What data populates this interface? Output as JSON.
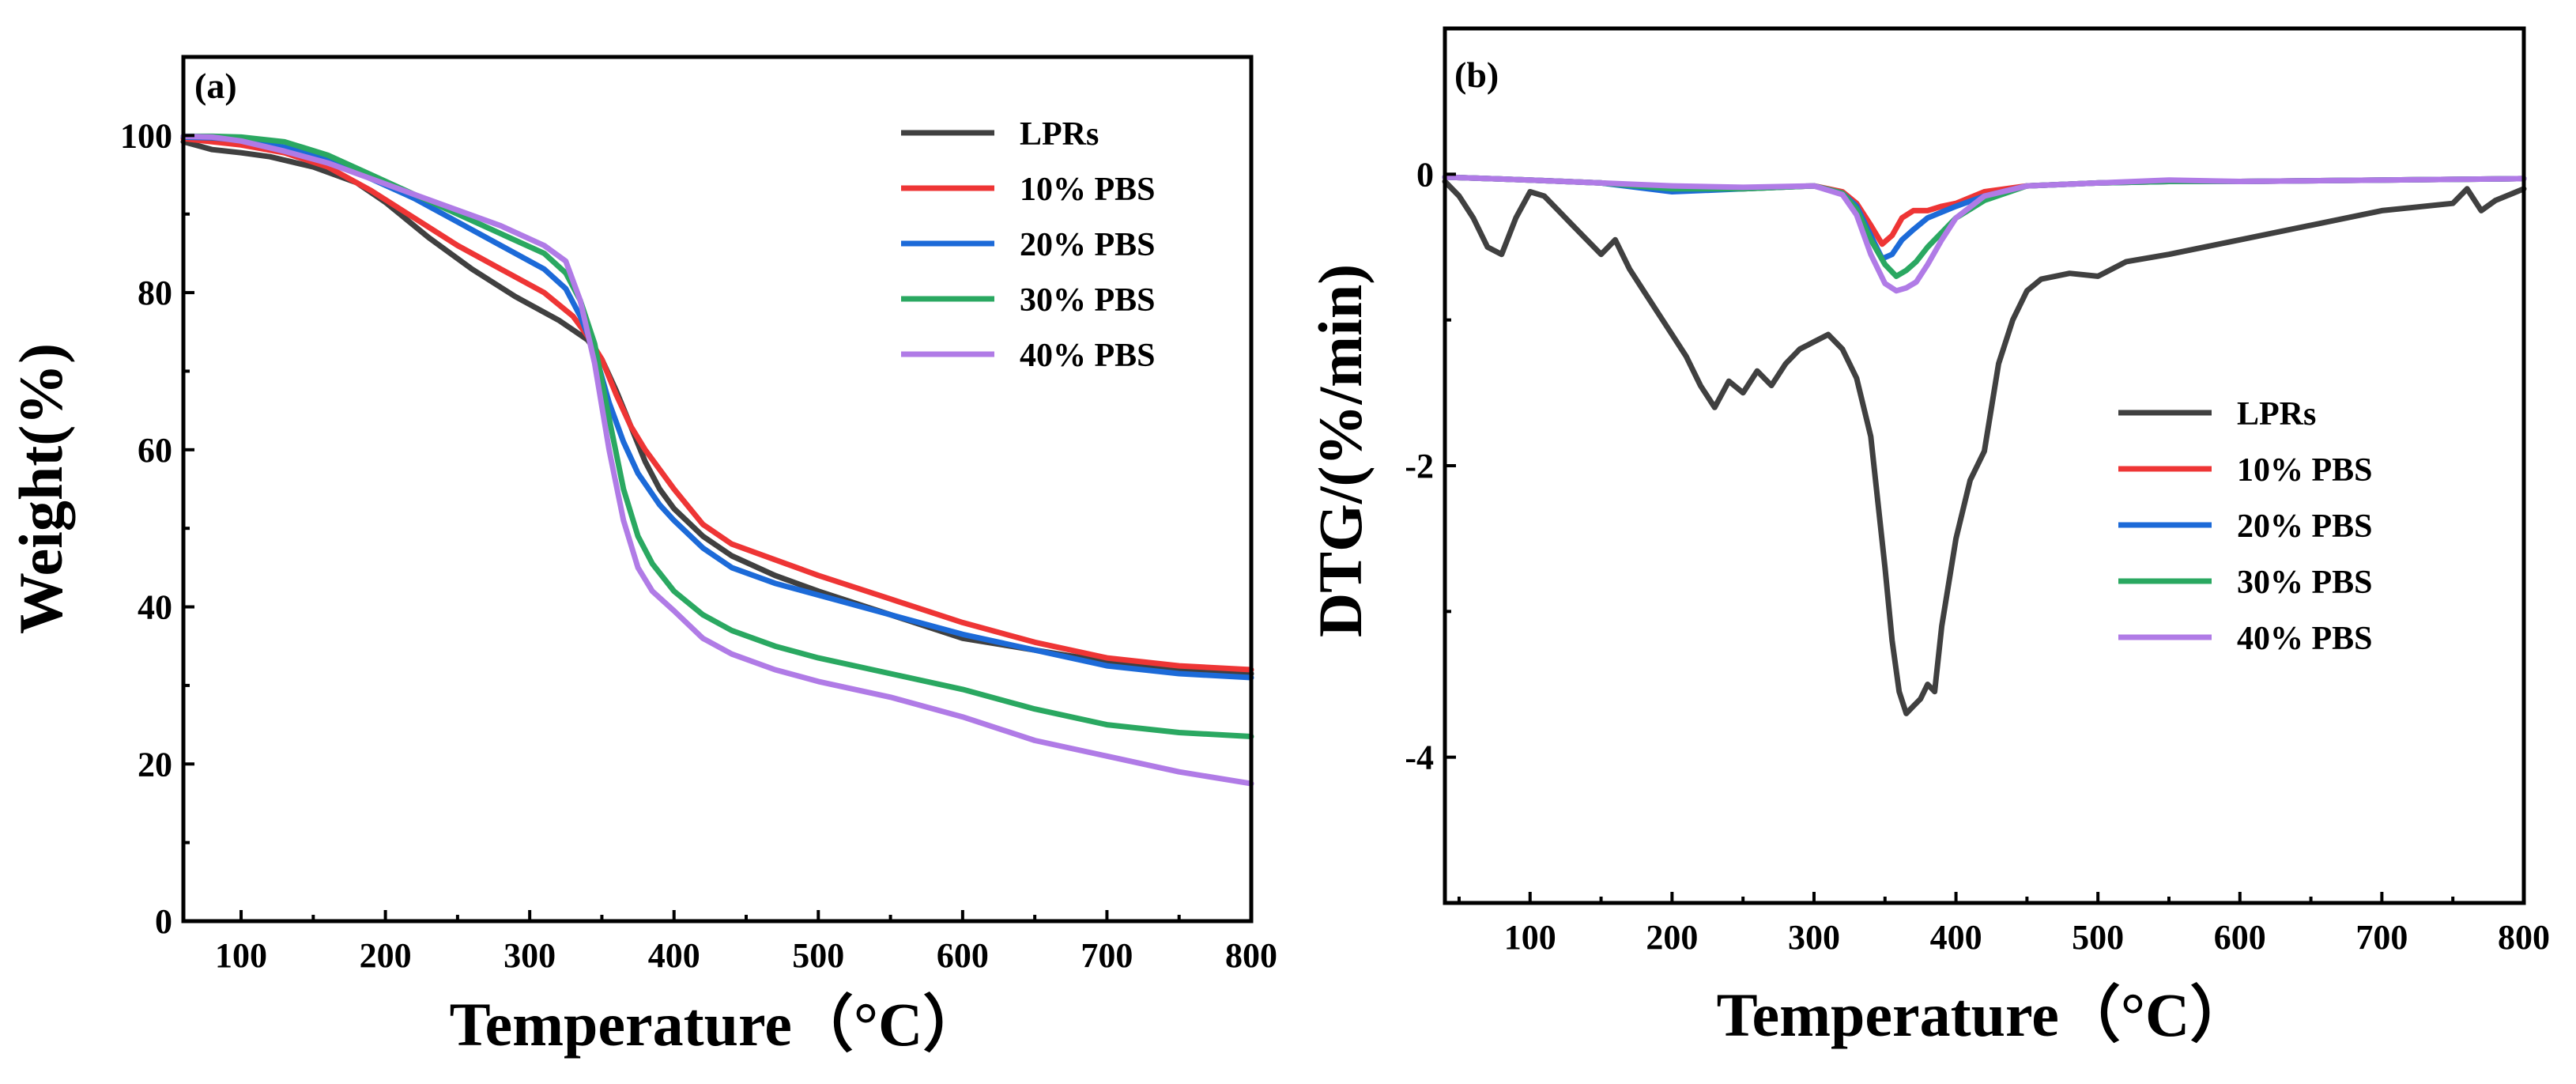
{
  "colors": {
    "LPRs": "#404040",
    "10% PBS": "#ee3535",
    "20% PBS": "#1c6ad8",
    "30% PBS": "#2aa861",
    "40% PBS": "#b07be6"
  },
  "chart_data": [
    {
      "type": "line",
      "panel_label": "(a)",
      "title": "",
      "xlabel": "Temperature（°C）",
      "ylabel": "Weight(%)",
      "xlim": [
        60,
        800
      ],
      "ylim": [
        0,
        110
      ],
      "xticks": [
        100,
        200,
        300,
        400,
        500,
        600,
        700,
        800
      ],
      "yticks": [
        0,
        20,
        40,
        60,
        80,
        100
      ],
      "xtick_labels": [
        "100",
        "200",
        "300",
        "400",
        "500",
        "600",
        "700",
        "800"
      ],
      "ytick_labels": [
        "0",
        "20",
        "40",
        "60",
        "80",
        "100"
      ],
      "grid": false,
      "legend_position": "top-right",
      "series": [
        {
          "name": "LPRs",
          "x": [
            60,
            80,
            100,
            120,
            150,
            180,
            200,
            230,
            260,
            290,
            320,
            340,
            350,
            360,
            370,
            380,
            390,
            400,
            420,
            440,
            470,
            500,
            550,
            600,
            650,
            700,
            750,
            800
          ],
          "y": [
            99.2,
            98.2,
            97.8,
            97.3,
            96.0,
            94.0,
            91.5,
            87.0,
            83.0,
            79.5,
            76.5,
            74.0,
            71.5,
            67.5,
            63.0,
            58.5,
            55.0,
            52.5,
            49.0,
            46.5,
            44.0,
            42.0,
            39.0,
            36.0,
            34.5,
            33.0,
            32.0,
            31.5
          ]
        },
        {
          "name": "10% PBS",
          "x": [
            60,
            80,
            100,
            130,
            160,
            190,
            220,
            250,
            280,
            310,
            330,
            340,
            350,
            360,
            370,
            380,
            400,
            420,
            440,
            470,
            500,
            550,
            600,
            650,
            700,
            750,
            800
          ],
          "y": [
            99.6,
            99.2,
            98.8,
            97.8,
            96.0,
            93.0,
            89.5,
            86.0,
            83.0,
            80.0,
            77.0,
            74.5,
            71.5,
            67.0,
            63.0,
            60.0,
            55.0,
            50.5,
            48.0,
            46.0,
            44.0,
            41.0,
            38.0,
            35.5,
            33.5,
            32.5,
            32.0
          ]
        },
        {
          "name": "20% PBS",
          "x": [
            60,
            80,
            100,
            130,
            160,
            190,
            220,
            250,
            280,
            310,
            325,
            335,
            345,
            355,
            365,
            375,
            390,
            400,
            420,
            440,
            470,
            500,
            550,
            600,
            650,
            700,
            750,
            800
          ],
          "y": [
            99.8,
            99.7,
            99.4,
            98.5,
            97.0,
            94.5,
            92.0,
            89.0,
            86.0,
            83.0,
            80.5,
            77.0,
            72.5,
            66.0,
            61.0,
            57.0,
            53.0,
            51.0,
            47.5,
            45.0,
            43.0,
            41.5,
            39.0,
            36.5,
            34.5,
            32.5,
            31.5,
            31.0
          ]
        },
        {
          "name": "30% PBS",
          "x": [
            60,
            80,
            100,
            130,
            160,
            190,
            220,
            250,
            280,
            310,
            325,
            335,
            345,
            355,
            365,
            375,
            385,
            400,
            420,
            440,
            470,
            500,
            550,
            600,
            650,
            700,
            750,
            800
          ],
          "y": [
            99.9,
            99.9,
            99.8,
            99.2,
            97.5,
            95.0,
            92.5,
            90.0,
            87.5,
            85.0,
            82.5,
            79.0,
            73.5,
            64.0,
            55.0,
            49.0,
            45.5,
            42.0,
            39.0,
            37.0,
            35.0,
            33.5,
            31.5,
            29.5,
            27.0,
            25.0,
            24.0,
            23.5
          ]
        },
        {
          "name": "40% PBS",
          "x": [
            60,
            80,
            100,
            130,
            160,
            190,
            220,
            250,
            280,
            310,
            325,
            335,
            345,
            355,
            365,
            375,
            385,
            400,
            420,
            440,
            470,
            500,
            550,
            600,
            650,
            700,
            750,
            800
          ],
          "y": [
            99.9,
            99.8,
            99.3,
            98.0,
            96.5,
            94.5,
            92.5,
            90.5,
            88.5,
            86.0,
            84.0,
            79.0,
            71.0,
            60.0,
            51.0,
            45.0,
            42.0,
            39.5,
            36.0,
            34.0,
            32.0,
            30.5,
            28.5,
            26.0,
            23.0,
            21.0,
            19.0,
            17.5
          ]
        }
      ]
    },
    {
      "type": "line",
      "panel_label": "(b)",
      "title": "",
      "xlabel": "Temperature（°C）",
      "ylabel": "DTG/(%/min)",
      "xlim": [
        40,
        800
      ],
      "ylim": [
        -5,
        1
      ],
      "xticks": [
        100,
        200,
        300,
        400,
        500,
        600,
        700,
        800
      ],
      "yticks": [
        0,
        -2,
        -4
      ],
      "xtick_labels": [
        "100",
        "200",
        "300",
        "400",
        "500",
        "600",
        "700",
        "800"
      ],
      "ytick_labels": [
        "0",
        "-2",
        "-4"
      ],
      "grid": false,
      "legend_position": "center-right",
      "series": [
        {
          "name": "LPRs",
          "x": [
            40,
            50,
            60,
            70,
            80,
            90,
            100,
            110,
            120,
            130,
            140,
            150,
            160,
            170,
            180,
            190,
            200,
            210,
            220,
            230,
            240,
            250,
            260,
            270,
            280,
            290,
            300,
            310,
            320,
            330,
            340,
            350,
            355,
            360,
            365,
            370,
            375,
            380,
            385,
            390,
            400,
            410,
            420,
            430,
            440,
            450,
            460,
            480,
            500,
            520,
            550,
            600,
            650,
            700,
            750,
            760,
            770,
            780,
            800
          ],
          "y": [
            -0.05,
            -0.15,
            -0.3,
            -0.5,
            -0.55,
            -0.3,
            -0.12,
            -0.15,
            -0.25,
            -0.35,
            -0.45,
            -0.55,
            -0.45,
            -0.65,
            -0.8,
            -0.95,
            -1.1,
            -1.25,
            -1.45,
            -1.6,
            -1.42,
            -1.5,
            -1.35,
            -1.45,
            -1.3,
            -1.2,
            -1.15,
            -1.1,
            -1.2,
            -1.4,
            -1.8,
            -2.7,
            -3.2,
            -3.55,
            -3.7,
            -3.65,
            -3.6,
            -3.5,
            -3.55,
            -3.1,
            -2.5,
            -2.1,
            -1.9,
            -1.3,
            -1.0,
            -0.8,
            -0.72,
            -0.68,
            -0.7,
            -0.6,
            -0.55,
            -0.45,
            -0.35,
            -0.25,
            -0.2,
            -0.1,
            -0.25,
            -0.18,
            -0.1
          ]
        },
        {
          "name": "10% PBS",
          "x": [
            40,
            100,
            150,
            200,
            250,
            300,
            320,
            330,
            340,
            348,
            355,
            362,
            370,
            380,
            390,
            400,
            420,
            450,
            500,
            550,
            600,
            700,
            800
          ],
          "y": [
            -0.02,
            -0.04,
            -0.06,
            -0.1,
            -0.1,
            -0.08,
            -0.12,
            -0.2,
            -0.35,
            -0.48,
            -0.42,
            -0.3,
            -0.25,
            -0.25,
            -0.22,
            -0.2,
            -0.12,
            -0.08,
            -0.06,
            -0.05,
            -0.05,
            -0.04,
            -0.03
          ]
        },
        {
          "name": "20% PBS",
          "x": [
            40,
            100,
            150,
            200,
            250,
            300,
            320,
            330,
            340,
            348,
            355,
            362,
            370,
            380,
            390,
            400,
            420,
            450,
            500,
            550,
            600,
            700,
            800
          ],
          "y": [
            -0.02,
            -0.04,
            -0.06,
            -0.12,
            -0.1,
            -0.08,
            -0.13,
            -0.22,
            -0.42,
            -0.58,
            -0.55,
            -0.45,
            -0.38,
            -0.3,
            -0.26,
            -0.22,
            -0.15,
            -0.08,
            -0.06,
            -0.05,
            -0.05,
            -0.04,
            -0.03
          ]
        },
        {
          "name": "30% PBS",
          "x": [
            40,
            100,
            150,
            200,
            250,
            300,
            320,
            330,
            340,
            350,
            358,
            365,
            372,
            380,
            390,
            400,
            420,
            450,
            500,
            550,
            600,
            700,
            800
          ],
          "y": [
            -0.02,
            -0.04,
            -0.06,
            -0.1,
            -0.1,
            -0.08,
            -0.13,
            -0.24,
            -0.45,
            -0.62,
            -0.7,
            -0.66,
            -0.6,
            -0.5,
            -0.4,
            -0.3,
            -0.18,
            -0.08,
            -0.06,
            -0.05,
            -0.05,
            -0.04,
            -0.03
          ]
        },
        {
          "name": "40% PBS",
          "x": [
            40,
            100,
            150,
            200,
            250,
            300,
            320,
            330,
            340,
            350,
            358,
            365,
            372,
            380,
            390,
            400,
            420,
            450,
            500,
            550,
            600,
            700,
            800
          ],
          "y": [
            -0.02,
            -0.04,
            -0.06,
            -0.08,
            -0.09,
            -0.08,
            -0.14,
            -0.28,
            -0.55,
            -0.75,
            -0.8,
            -0.78,
            -0.74,
            -0.62,
            -0.45,
            -0.3,
            -0.15,
            -0.08,
            -0.06,
            -0.04,
            -0.05,
            -0.04,
            -0.03
          ]
        }
      ]
    }
  ]
}
